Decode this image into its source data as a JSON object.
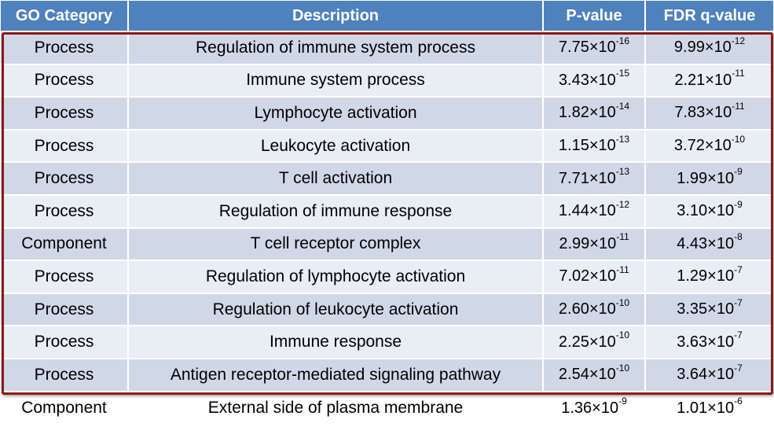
{
  "headers": [
    "GO Category",
    "Description",
    "P-value",
    "FDR q-value"
  ],
  "rows": [
    {
      "category": "Process",
      "description": "Regulation of immune system process",
      "p_mant": "7.75",
      "p_exp": "-16",
      "q_mant": "9.99",
      "q_exp": "-12"
    },
    {
      "category": "Process",
      "description": "Immune system process",
      "p_mant": "3.43",
      "p_exp": "-15",
      "q_mant": "2.21",
      "q_exp": "-11"
    },
    {
      "category": "Process",
      "description": "Lymphocyte activation",
      "p_mant": "1.82",
      "p_exp": "-14",
      "q_mant": "7.83",
      "q_exp": "-11"
    },
    {
      "category": "Process",
      "description": "Leukocyte activation",
      "p_mant": "1.15",
      "p_exp": "-13",
      "q_mant": "3.72",
      "q_exp": "-10"
    },
    {
      "category": "Process",
      "description": "T cell activation",
      "p_mant": "7.71",
      "p_exp": "-13",
      "q_mant": "1.99",
      "q_exp": "-9"
    },
    {
      "category": "Process",
      "description": "Regulation of immune response",
      "p_mant": "1.44",
      "p_exp": "-12",
      "q_mant": "3.10",
      "q_exp": "-9"
    },
    {
      "category": "Component",
      "description": "T cell receptor complex",
      "p_mant": "2.99",
      "p_exp": "-11",
      "q_mant": "4.43",
      "q_exp": "-8"
    },
    {
      "category": "Process",
      "description": "Regulation of lymphocyte activation",
      "p_mant": "7.02",
      "p_exp": "-11",
      "q_mant": "1.29",
      "q_exp": "-7"
    },
    {
      "category": "Process",
      "description": "Regulation of leukocyte activation",
      "p_mant": "2.60",
      "p_exp": "-10",
      "q_mant": "3.35",
      "q_exp": "-7"
    },
    {
      "category": "Process",
      "description": "Immune response",
      "p_mant": "2.25",
      "p_exp": "-10",
      "q_mant": "3.63",
      "q_exp": "-7"
    },
    {
      "category": "Process",
      "description": "Antigen receptor-mediated signaling pathway",
      "p_mant": "2.54",
      "p_exp": "-10",
      "q_mant": "3.64",
      "q_exp": "-7"
    },
    {
      "category": "Component",
      "description": "External side of plasma membrane",
      "p_mant": "1.36",
      "p_exp": "-9",
      "q_mant": "1.01",
      "q_exp": "-6"
    }
  ],
  "colors": {
    "header": "#4f81bd",
    "row_odd": "#d0d8e8",
    "row_even": "#e9edf4",
    "highlight_border": "#8b1a1a"
  }
}
